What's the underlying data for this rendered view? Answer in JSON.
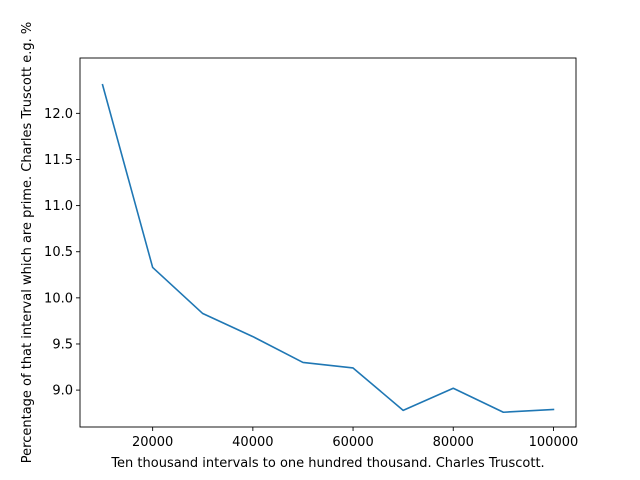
{
  "chart_data": {
    "type": "line",
    "title": "",
    "xlabel": "Ten thousand intervals to one hundred thousand. Charles Truscott.",
    "ylabel": "Percentage of that interval which are prime. Charles Truscott e.g. %",
    "x": [
      10000,
      20000,
      30000,
      40000,
      50000,
      60000,
      70000,
      80000,
      90000,
      100000
    ],
    "series": [
      {
        "values": [
          12.31,
          10.33,
          9.83,
          9.58,
          9.3,
          9.24,
          8.78,
          9.02,
          8.76,
          8.79
        ],
        "color": "#1f77b4"
      }
    ],
    "xlim": [
      5500,
      104500
    ],
    "ylim": [
      8.6,
      12.6
    ],
    "xticks": [
      20000,
      40000,
      60000,
      80000,
      100000
    ],
    "yticks": [
      9.0,
      9.5,
      10.0,
      10.5,
      11.0,
      11.5,
      12.0
    ],
    "xtick_labels": [
      "20000",
      "40000",
      "60000",
      "80000",
      "100000"
    ],
    "ytick_labels": [
      "9.0",
      "9.5",
      "10.0",
      "10.5",
      "11.0",
      "11.5",
      "12.0"
    ],
    "grid": false,
    "legend": "none"
  }
}
